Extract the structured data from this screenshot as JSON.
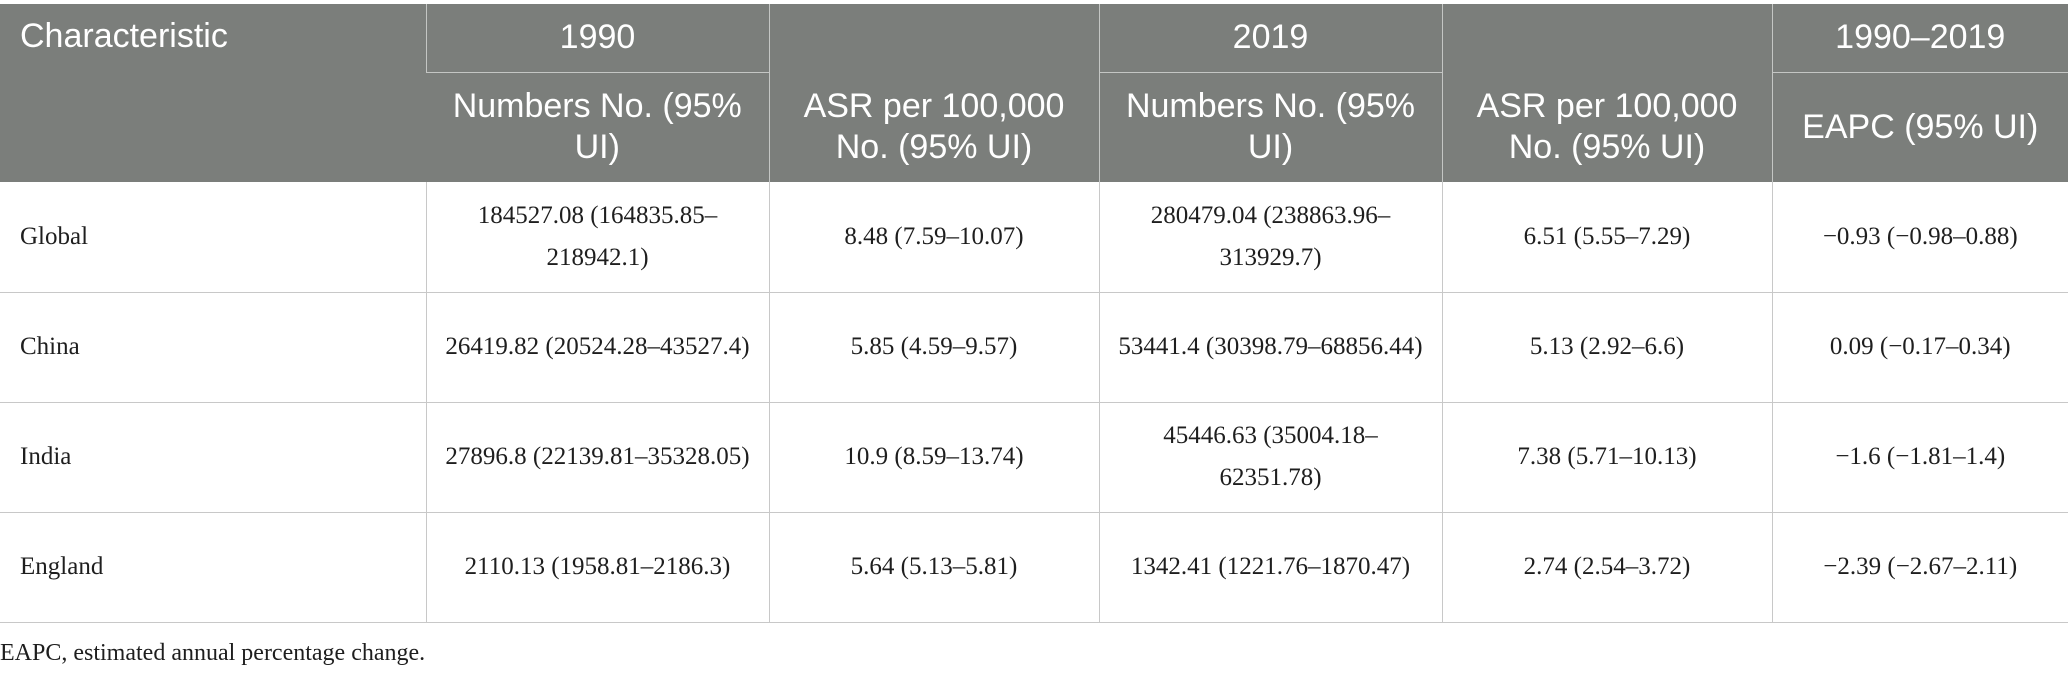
{
  "header": {
    "characteristic": "Characteristic",
    "year_1990": "1990",
    "year_2019": "2019",
    "period": "1990–2019",
    "numbers_1990": "Numbers No. (95% UI)",
    "asr_1990": "ASR per 100,000 No. (95% UI)",
    "numbers_2019": "Numbers No. (95% UI)",
    "asr_2019": "ASR per 100,000 No. (95% UI)",
    "eapc": "EAPC (95% UI)"
  },
  "rows": [
    {
      "characteristic": "Global",
      "numbers_1990": "184527.08 (164835.85–218942.1)",
      "asr_1990": "8.48 (7.59–10.07)",
      "numbers_2019": "280479.04 (238863.96–313929.7)",
      "asr_2019": "6.51 (5.55–7.29)",
      "eapc": "−0.93 (−0.98–0.88)"
    },
    {
      "characteristic": "China",
      "numbers_1990": "26419.82 (20524.28–43527.4)",
      "asr_1990": "5.85 (4.59–9.57)",
      "numbers_2019": "53441.4 (30398.79–68856.44)",
      "asr_2019": "5.13 (2.92–6.6)",
      "eapc": "0.09 (−0.17–0.34)"
    },
    {
      "characteristic": "India",
      "numbers_1990": "27896.8 (22139.81–35328.05)",
      "asr_1990": "10.9 (8.59–13.74)",
      "numbers_2019": "45446.63 (35004.18–62351.78)",
      "asr_2019": "7.38 (5.71–10.13)",
      "eapc": "−1.6 (−1.81–1.4)"
    },
    {
      "characteristic": "England",
      "numbers_1990": "2110.13 (1958.81–2186.3)",
      "asr_1990": "5.64 (5.13–5.81)",
      "numbers_2019": "1342.41 (1221.76–1870.47)",
      "asr_2019": "2.74 (2.54–3.72)",
      "eapc": "−2.39 (−2.67–2.11)"
    }
  ],
  "footnote": "EAPC, estimated annual percentage change.",
  "colors": {
    "header_background": "#7b7e7b",
    "header_text": "#ffffff",
    "grid_lines": "#c8c8c8"
  }
}
